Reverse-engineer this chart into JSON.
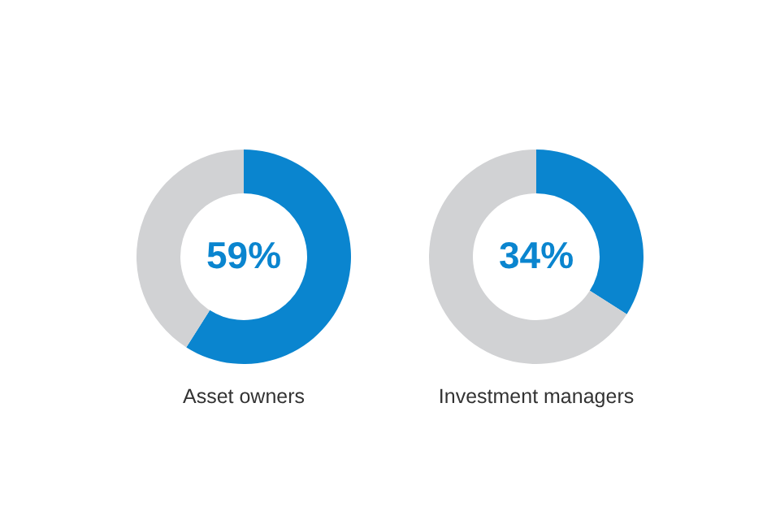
{
  "chart_data": [
    {
      "type": "donut",
      "title": "Asset owners",
      "categories": [
        null,
        null
      ],
      "values": [
        59,
        41
      ],
      "colors": [
        "#0a85cf",
        "#d1d2d4"
      ],
      "value_labels": [
        "59%",
        null
      ],
      "legend": false
    },
    {
      "type": "donut",
      "title": "Investment managers",
      "categories": [
        null,
        null
      ],
      "values": [
        34,
        66
      ],
      "colors": [
        "#0a85cf",
        "#d1d2d4"
      ],
      "value_labels": [
        "34%",
        null
      ],
      "legend": false
    }
  ]
}
